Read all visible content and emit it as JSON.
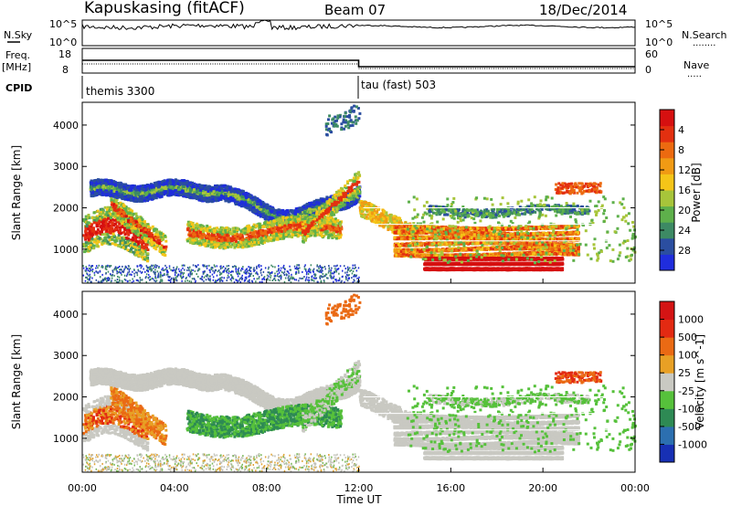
{
  "header": {
    "station": "Kapuskasing (fitACF)",
    "beam": "Beam 07",
    "date": "18/Dec/2014"
  },
  "left_labels": {
    "nsky": "N.Sky",
    "freq_line1": "Freq.",
    "freq_line2": "[MHz]",
    "cpid": "CPID"
  },
  "right_labels": {
    "nsearch": "N.Search",
    "nsearch_dots": "........",
    "nave": "Nave",
    "nave_dots": "....."
  },
  "noise_panel": {
    "left_ticks": [
      "10^5",
      "10^0"
    ],
    "right_ticks": [
      "10^5",
      "10^0"
    ]
  },
  "freq_panel": {
    "left_ticks": [
      "18",
      "8"
    ],
    "right_ticks": [
      "60",
      "0"
    ]
  },
  "cpid_panel": {
    "segments": [
      {
        "label": "themis 3300",
        "start_hour": 0
      },
      {
        "label": "tau (fast) 503",
        "start_hour": 12
      }
    ]
  },
  "x_axis": {
    "label": "Time UT",
    "ticks": [
      "00:00",
      "04:00",
      "08:00",
      "12:00",
      "16:00",
      "20:00",
      "00:00"
    ]
  },
  "chart_data": [
    {
      "type": "heatmap",
      "name": "power",
      "ylabel": "Slant Range [km]",
      "yticks": [
        "1000",
        "2000",
        "3000",
        "4000"
      ],
      "ylim": [
        180,
        4550
      ],
      "xlim": [
        0,
        24
      ],
      "colorbar": {
        "label": "Power [dB]",
        "ticks": [
          "4",
          "8",
          "12",
          "16",
          "20",
          "24",
          "28"
        ],
        "colors": [
          "#1f2ddd",
          "#2b4ea0",
          "#3d8a64",
          "#5eb04b",
          "#a7c53a",
          "#f5c518",
          "#f09a14",
          "#ec6a10",
          "#e33010",
          "#d61010"
        ]
      }
    },
    {
      "type": "heatmap",
      "name": "velocity",
      "ylabel": "Slant Range [km]",
      "yticks": [
        "1000",
        "2000",
        "3000",
        "4000"
      ],
      "ylim": [
        180,
        4550
      ],
      "xlim": [
        0,
        24
      ],
      "colorbar": {
        "label": "Velocity [m s^-1]",
        "ticks": [
          "1000",
          "500",
          "100",
          "25",
          "-25",
          "-100",
          "-500",
          "-1000"
        ],
        "colors": [
          "#1730b4",
          "#2c6fb0",
          "#2e8a54",
          "#56c13b",
          "#c9c9c2",
          "#e8a025",
          "#ea6a14",
          "#e32a12",
          "#d41414"
        ]
      }
    }
  ]
}
